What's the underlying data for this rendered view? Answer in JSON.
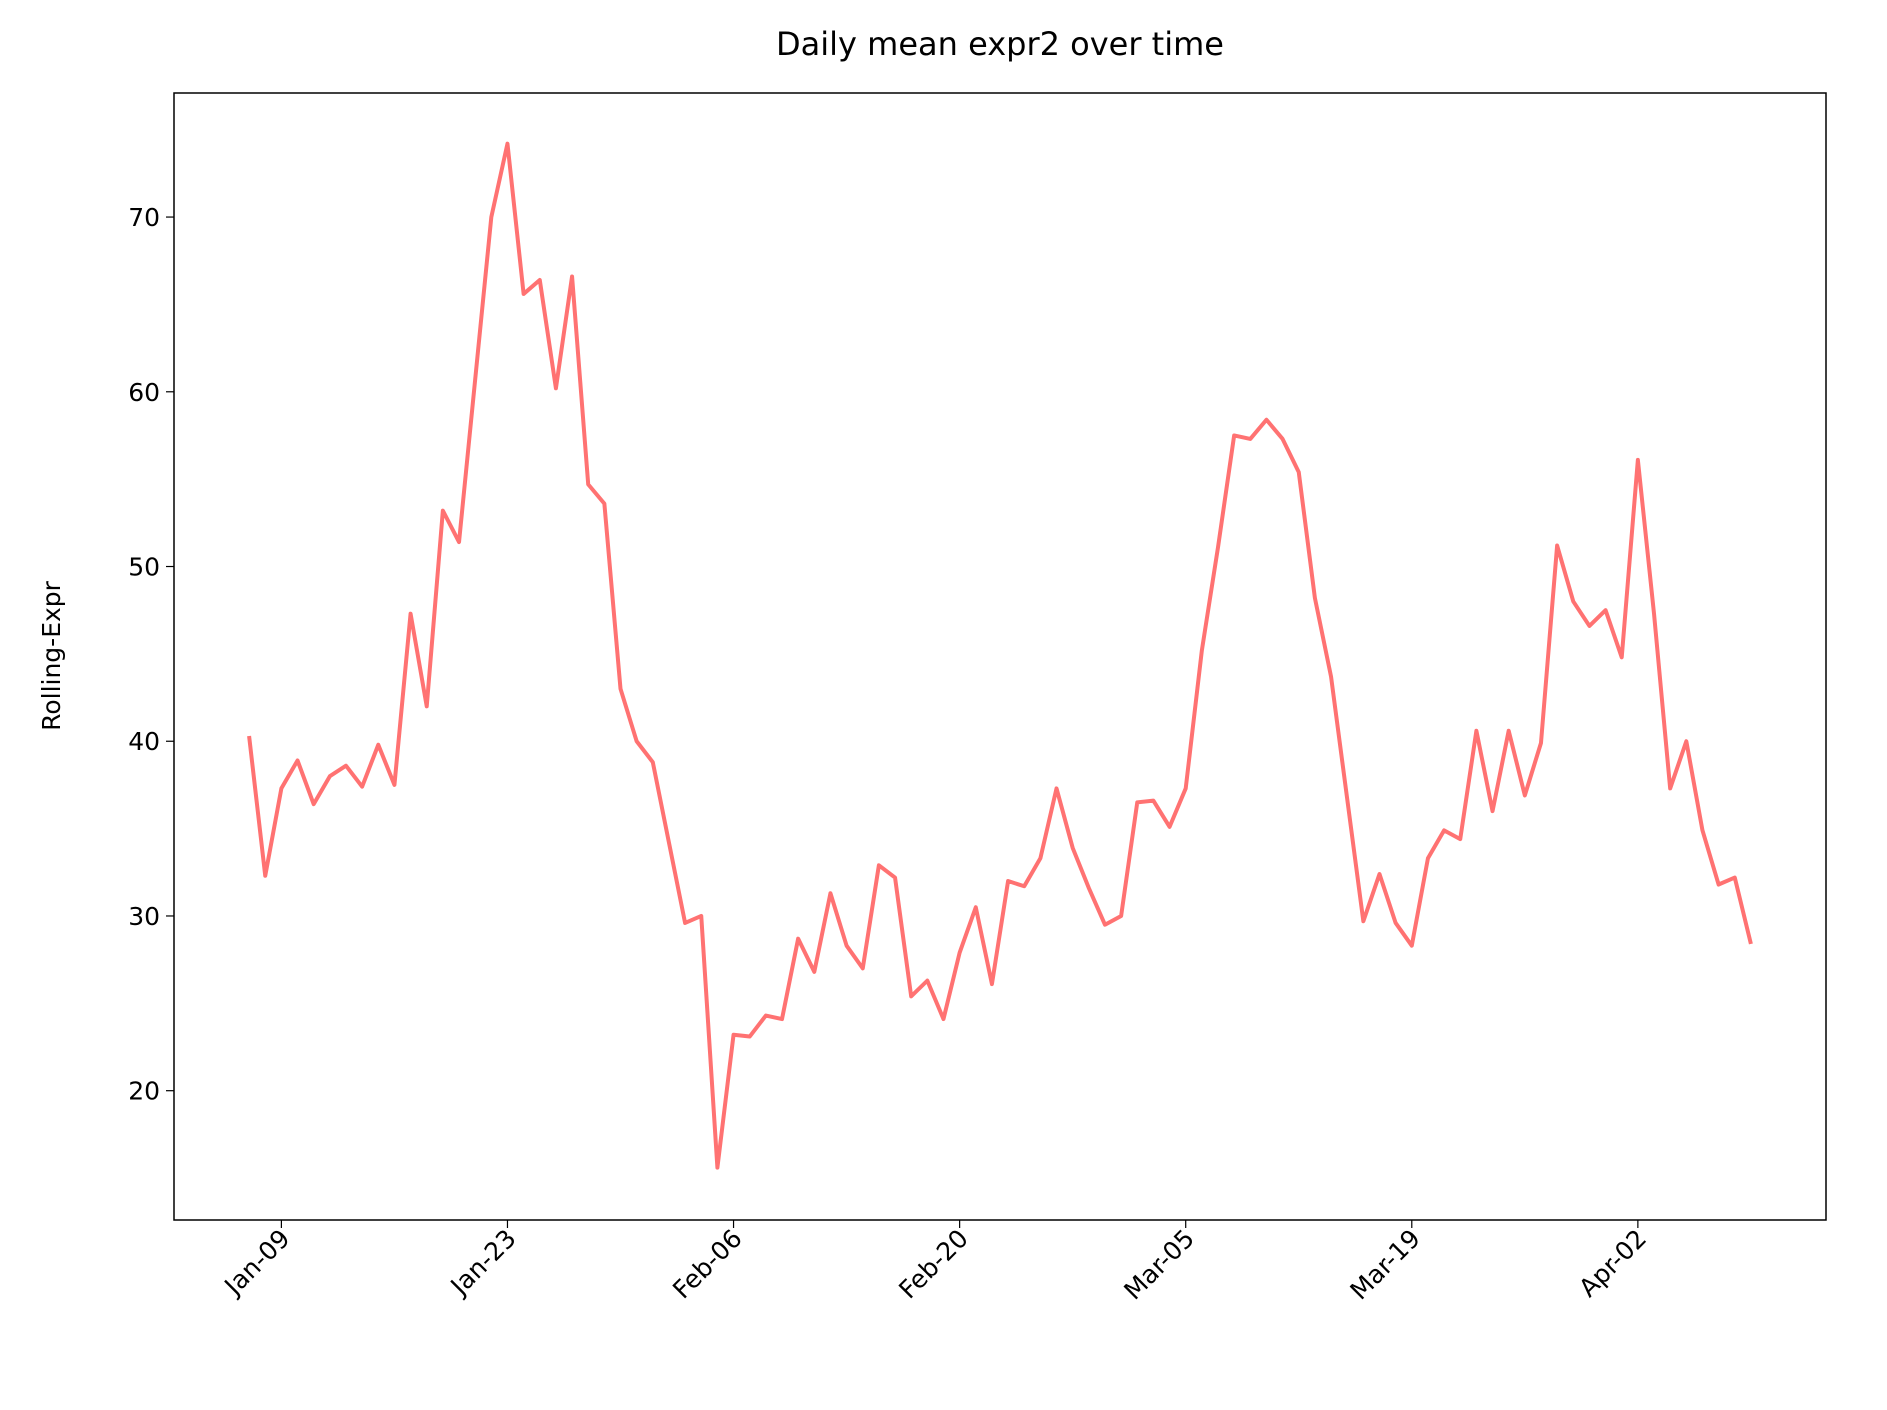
{
  "chart_data": {
    "type": "line",
    "title": "Daily mean expr2 over time",
    "ylabel": "Rolling-Expr",
    "x": [
      "Jan-07",
      "Jan-08",
      "Jan-09",
      "Jan-10",
      "Jan-11",
      "Jan-12",
      "Jan-13",
      "Jan-14",
      "Jan-15",
      "Jan-16",
      "Jan-17",
      "Jan-18",
      "Jan-19",
      "Jan-20",
      "Jan-21",
      "Jan-22",
      "Jan-23",
      "Jan-24",
      "Jan-25",
      "Jan-26",
      "Jan-27",
      "Jan-28",
      "Jan-29",
      "Jan-30",
      "Jan-31",
      "Feb-01",
      "Feb-02",
      "Feb-03",
      "Feb-04",
      "Feb-05",
      "Feb-06",
      "Feb-07",
      "Feb-08",
      "Feb-09",
      "Feb-10",
      "Feb-11",
      "Feb-12",
      "Feb-13",
      "Feb-14",
      "Feb-15",
      "Feb-16",
      "Feb-17",
      "Feb-18",
      "Feb-19",
      "Feb-20",
      "Feb-21",
      "Feb-22",
      "Feb-23",
      "Feb-24",
      "Feb-25",
      "Feb-26",
      "Feb-27",
      "Feb-28",
      "Feb-29",
      "Mar-01",
      "Mar-02",
      "Mar-03",
      "Mar-04",
      "Mar-05",
      "Mar-06",
      "Mar-07",
      "Mar-08",
      "Mar-09",
      "Mar-10",
      "Mar-11",
      "Mar-12",
      "Mar-13",
      "Mar-14",
      "Mar-15",
      "Mar-16",
      "Mar-17",
      "Mar-18",
      "Mar-19",
      "Mar-20",
      "Mar-21",
      "Mar-22",
      "Mar-23",
      "Mar-24",
      "Mar-25",
      "Mar-26",
      "Mar-27",
      "Mar-28",
      "Mar-29",
      "Mar-30",
      "Mar-31",
      "Apr-01",
      "Apr-02",
      "Apr-03",
      "Apr-04",
      "Apr-05",
      "Apr-06",
      "Apr-07",
      "Apr-08",
      "Apr-09"
    ],
    "series": [
      {
        "name": "expr2",
        "color": "#ff7272",
        "values": [
          40.3,
          32.3,
          37.3,
          38.9,
          36.4,
          38.0,
          38.6,
          37.4,
          39.8,
          37.5,
          47.3,
          42.0,
          53.2,
          51.4,
          60.7,
          70.0,
          74.2,
          65.6,
          66.4,
          60.2,
          66.6,
          54.7,
          53.6,
          43.0,
          40.0,
          38.8,
          34.2,
          29.6,
          30.0,
          15.6,
          23.2,
          23.1,
          24.3,
          24.1,
          28.7,
          26.8,
          31.3,
          28.3,
          27.0,
          32.9,
          32.2,
          25.4,
          26.3,
          24.1,
          27.9,
          30.5,
          26.1,
          32.0,
          31.7,
          33.3,
          37.3,
          33.9,
          31.6,
          29.5,
          30.0,
          36.5,
          36.6,
          35.1,
          37.3,
          45.2,
          51.1,
          57.5,
          57.3,
          58.4,
          57.3,
          55.4,
          48.2,
          43.7,
          36.7,
          29.7,
          32.4,
          29.6,
          28.3,
          33.3,
          34.9,
          34.4,
          40.6,
          36.0,
          40.6,
          36.9,
          39.9,
          51.2,
          48.0,
          46.6,
          47.5,
          44.8,
          56.1,
          47.3,
          37.3,
          40.0,
          34.9,
          31.8,
          32.2,
          28.4
        ]
      }
    ],
    "xticks": [
      "Jan-09",
      "Jan-23",
      "Feb-06",
      "Feb-20",
      "Mar-05",
      "Mar-19",
      "Apr-02"
    ],
    "ylim": [
      12.6,
      77.1
    ],
    "yticks": [
      20,
      30,
      40,
      50,
      60,
      70
    ]
  }
}
